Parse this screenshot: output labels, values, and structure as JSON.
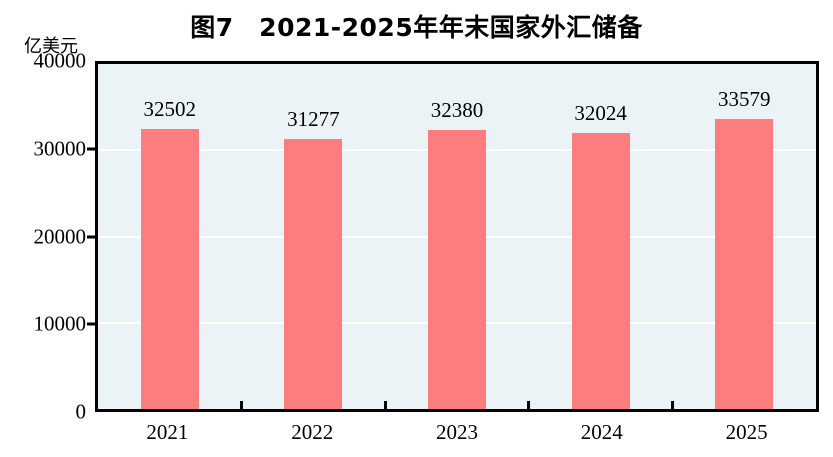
{
  "chart_data": {
    "type": "bar",
    "title": "图7　2021-2025年年末国家外汇储备",
    "unit_label": "亿美元",
    "categories": [
      "2021",
      "2022",
      "2023",
      "2024",
      "2025"
    ],
    "values": [
      32502,
      31277,
      32380,
      32024,
      33579
    ],
    "value_labels": [
      "32502",
      "31277",
      "32380",
      "32024",
      "33579"
    ],
    "xlabel": "",
    "ylabel": "亿美元",
    "ylim": [
      0,
      40000
    ],
    "yticks": [
      0,
      10000,
      20000,
      30000,
      40000
    ],
    "ytick_labels": [
      "0",
      "10000",
      "20000",
      "30000",
      "40000"
    ],
    "grid": "horizontal",
    "legend": "none",
    "colors": {
      "bar": "#fc7d7d",
      "plot_background": "#ebf3f7",
      "gridline": "#ffffff",
      "axis_border": "#000000",
      "text": "#000000"
    }
  }
}
